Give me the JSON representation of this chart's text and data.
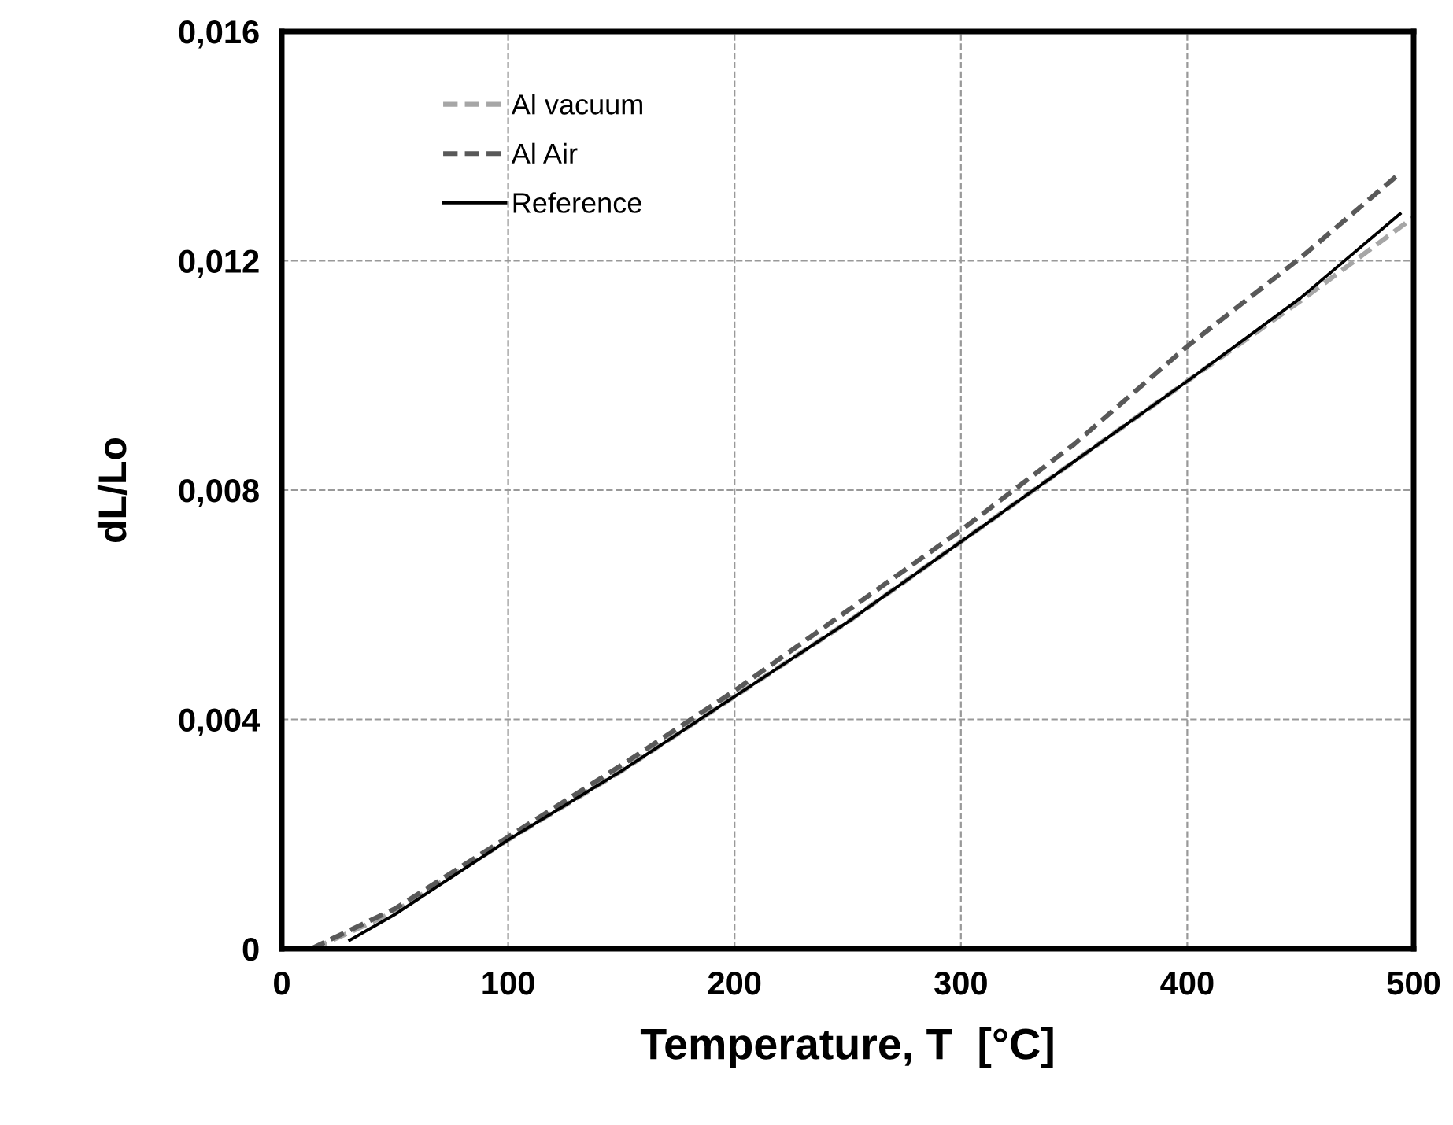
{
  "chart_data": {
    "type": "line",
    "xlabel": "Temperature, T  [°C]",
    "ylabel": "dL/Lo",
    "xlim": [
      0,
      500
    ],
    "xticks": [
      0,
      100,
      200,
      300,
      400,
      500
    ],
    "ylim": [
      0,
      0.016
    ],
    "yticks": [
      {
        "value": 0,
        "label": "0"
      },
      {
        "value": 0.004,
        "label": "0,004"
      },
      {
        "value": 0.008,
        "label": "0,008"
      },
      {
        "value": 0.012,
        "label": "0,012"
      },
      {
        "value": 0.016,
        "label": "0,016"
      }
    ],
    "grid": true,
    "legend": "top left",
    "marker": "none",
    "series": [
      {
        "name": "Al vacuum",
        "color": "#a6a6a6",
        "line_style": "dashed",
        "x": [
          14,
          50,
          100,
          150,
          200,
          250,
          300,
          350,
          400,
          450,
          500
        ],
        "values": [
          0,
          0.00065,
          0.0019,
          0.0031,
          0.0044,
          0.0057,
          0.0071,
          0.0085,
          0.0099,
          0.0113,
          0.01276
        ]
      },
      {
        "name": "Al Air",
        "color": "#595959",
        "line_style": "dashed",
        "x": [
          13,
          50,
          100,
          150,
          200,
          250,
          300,
          350,
          400,
          450,
          494
        ],
        "values": [
          0,
          0.0007,
          0.00195,
          0.0032,
          0.0045,
          0.0059,
          0.0073,
          0.0088,
          0.01051,
          0.01205,
          0.01353
        ]
      },
      {
        "name": "Reference",
        "color": "#000000",
        "line_style": "solid",
        "x": [
          30,
          50,
          100,
          150,
          200,
          250,
          300,
          350,
          400,
          450,
          494
        ],
        "values": [
          0.00015,
          0.0006,
          0.0019,
          0.0031,
          0.0044,
          0.0057,
          0.0071,
          0.0085,
          0.0099,
          0.01135,
          0.01282
        ]
      }
    ]
  }
}
